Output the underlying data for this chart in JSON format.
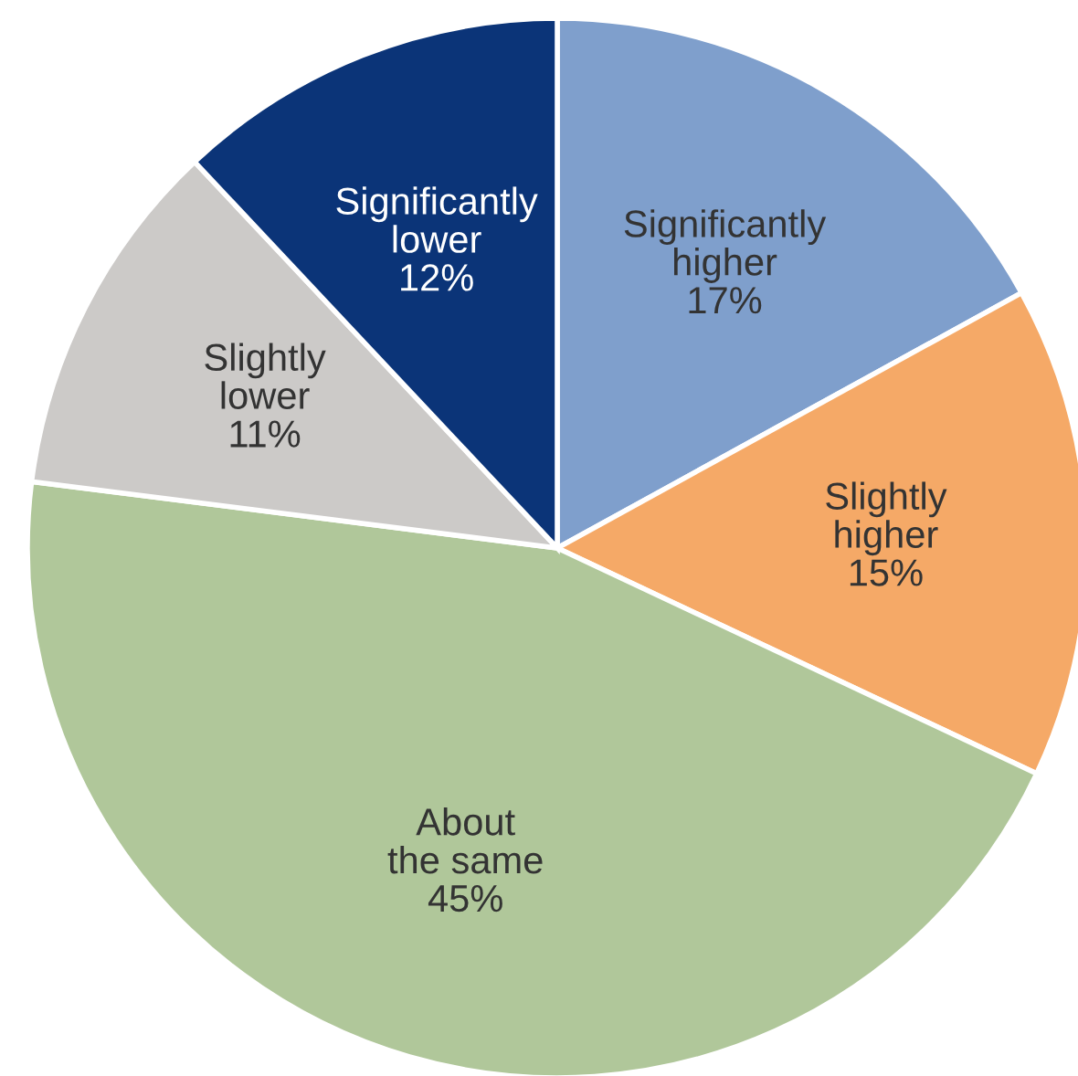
{
  "chart_data": {
    "type": "pie",
    "categories": [
      "Significantly\nhigher",
      "Slightly\nhigher",
      "About\nthe same",
      "Slightly\nlower",
      "Significantly\nlower"
    ],
    "values": [
      17,
      15,
      45,
      11,
      12
    ],
    "value_labels": [
      "17%",
      "15%",
      "45%",
      "11%",
      "12%"
    ],
    "colors": [
      "#7f9fcc",
      "#f5a967",
      "#b0c79a",
      "#cccac8",
      "#0b3478"
    ]
  }
}
